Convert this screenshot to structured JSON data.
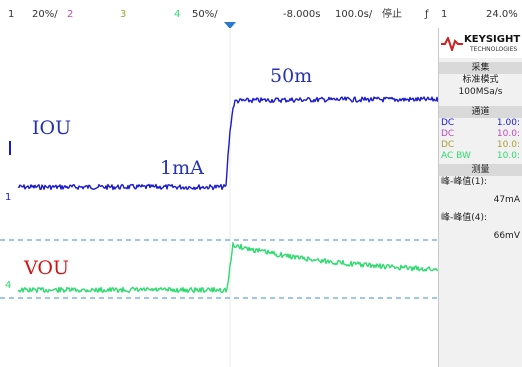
{
  "topbar": {
    "ch1_num": "1",
    "ch1_scale": "20%/",
    "ch2_num": "2",
    "ch3_num": "3",
    "ch4_num": "4",
    "ch4_scale": "50%/",
    "trigger_pos": "-8.000s",
    "timebase": "100.0s/",
    "run_state": "停止",
    "trig_source": "1",
    "trig_level": "24.0%"
  },
  "colors": {
    "ch1": "#1a1ad2",
    "ch2": "#c04bc0",
    "ch3": "#a8a032",
    "ch4": "#2ddc6e",
    "annotation_blue": "#2832b4",
    "annotation_red": "#d01414",
    "grid_dashed": "#3f8fd0"
  },
  "annotations": {
    "iou_label": "IOU",
    "vou_label": "VOU",
    "low_current": "1mA",
    "high_current": "50m"
  },
  "markers": {
    "ch1_ground": "1",
    "ch4_ground": "4"
  },
  "sidebar": {
    "brand": "KEYSIGHT",
    "brand_sub": "TECHNOLOGIES",
    "acquire_header": "采集",
    "acquire_mode": "标准模式",
    "sample_rate": "100MSa/s",
    "channel_header": "通道",
    "channels": [
      {
        "coupling": "DC",
        "scale": "1.00:"
      },
      {
        "coupling": "DC",
        "scale": "10.0:"
      },
      {
        "coupling": "DC",
        "scale": "10.0:"
      },
      {
        "coupling": "AC BW",
        "scale": "10.0:"
      }
    ],
    "measure_header": "测量",
    "measurements": [
      {
        "label": "峰-峰值(1):",
        "value": "47mA"
      },
      {
        "label": "峰-峰值(4):",
        "value": "66mV"
      }
    ]
  }
}
